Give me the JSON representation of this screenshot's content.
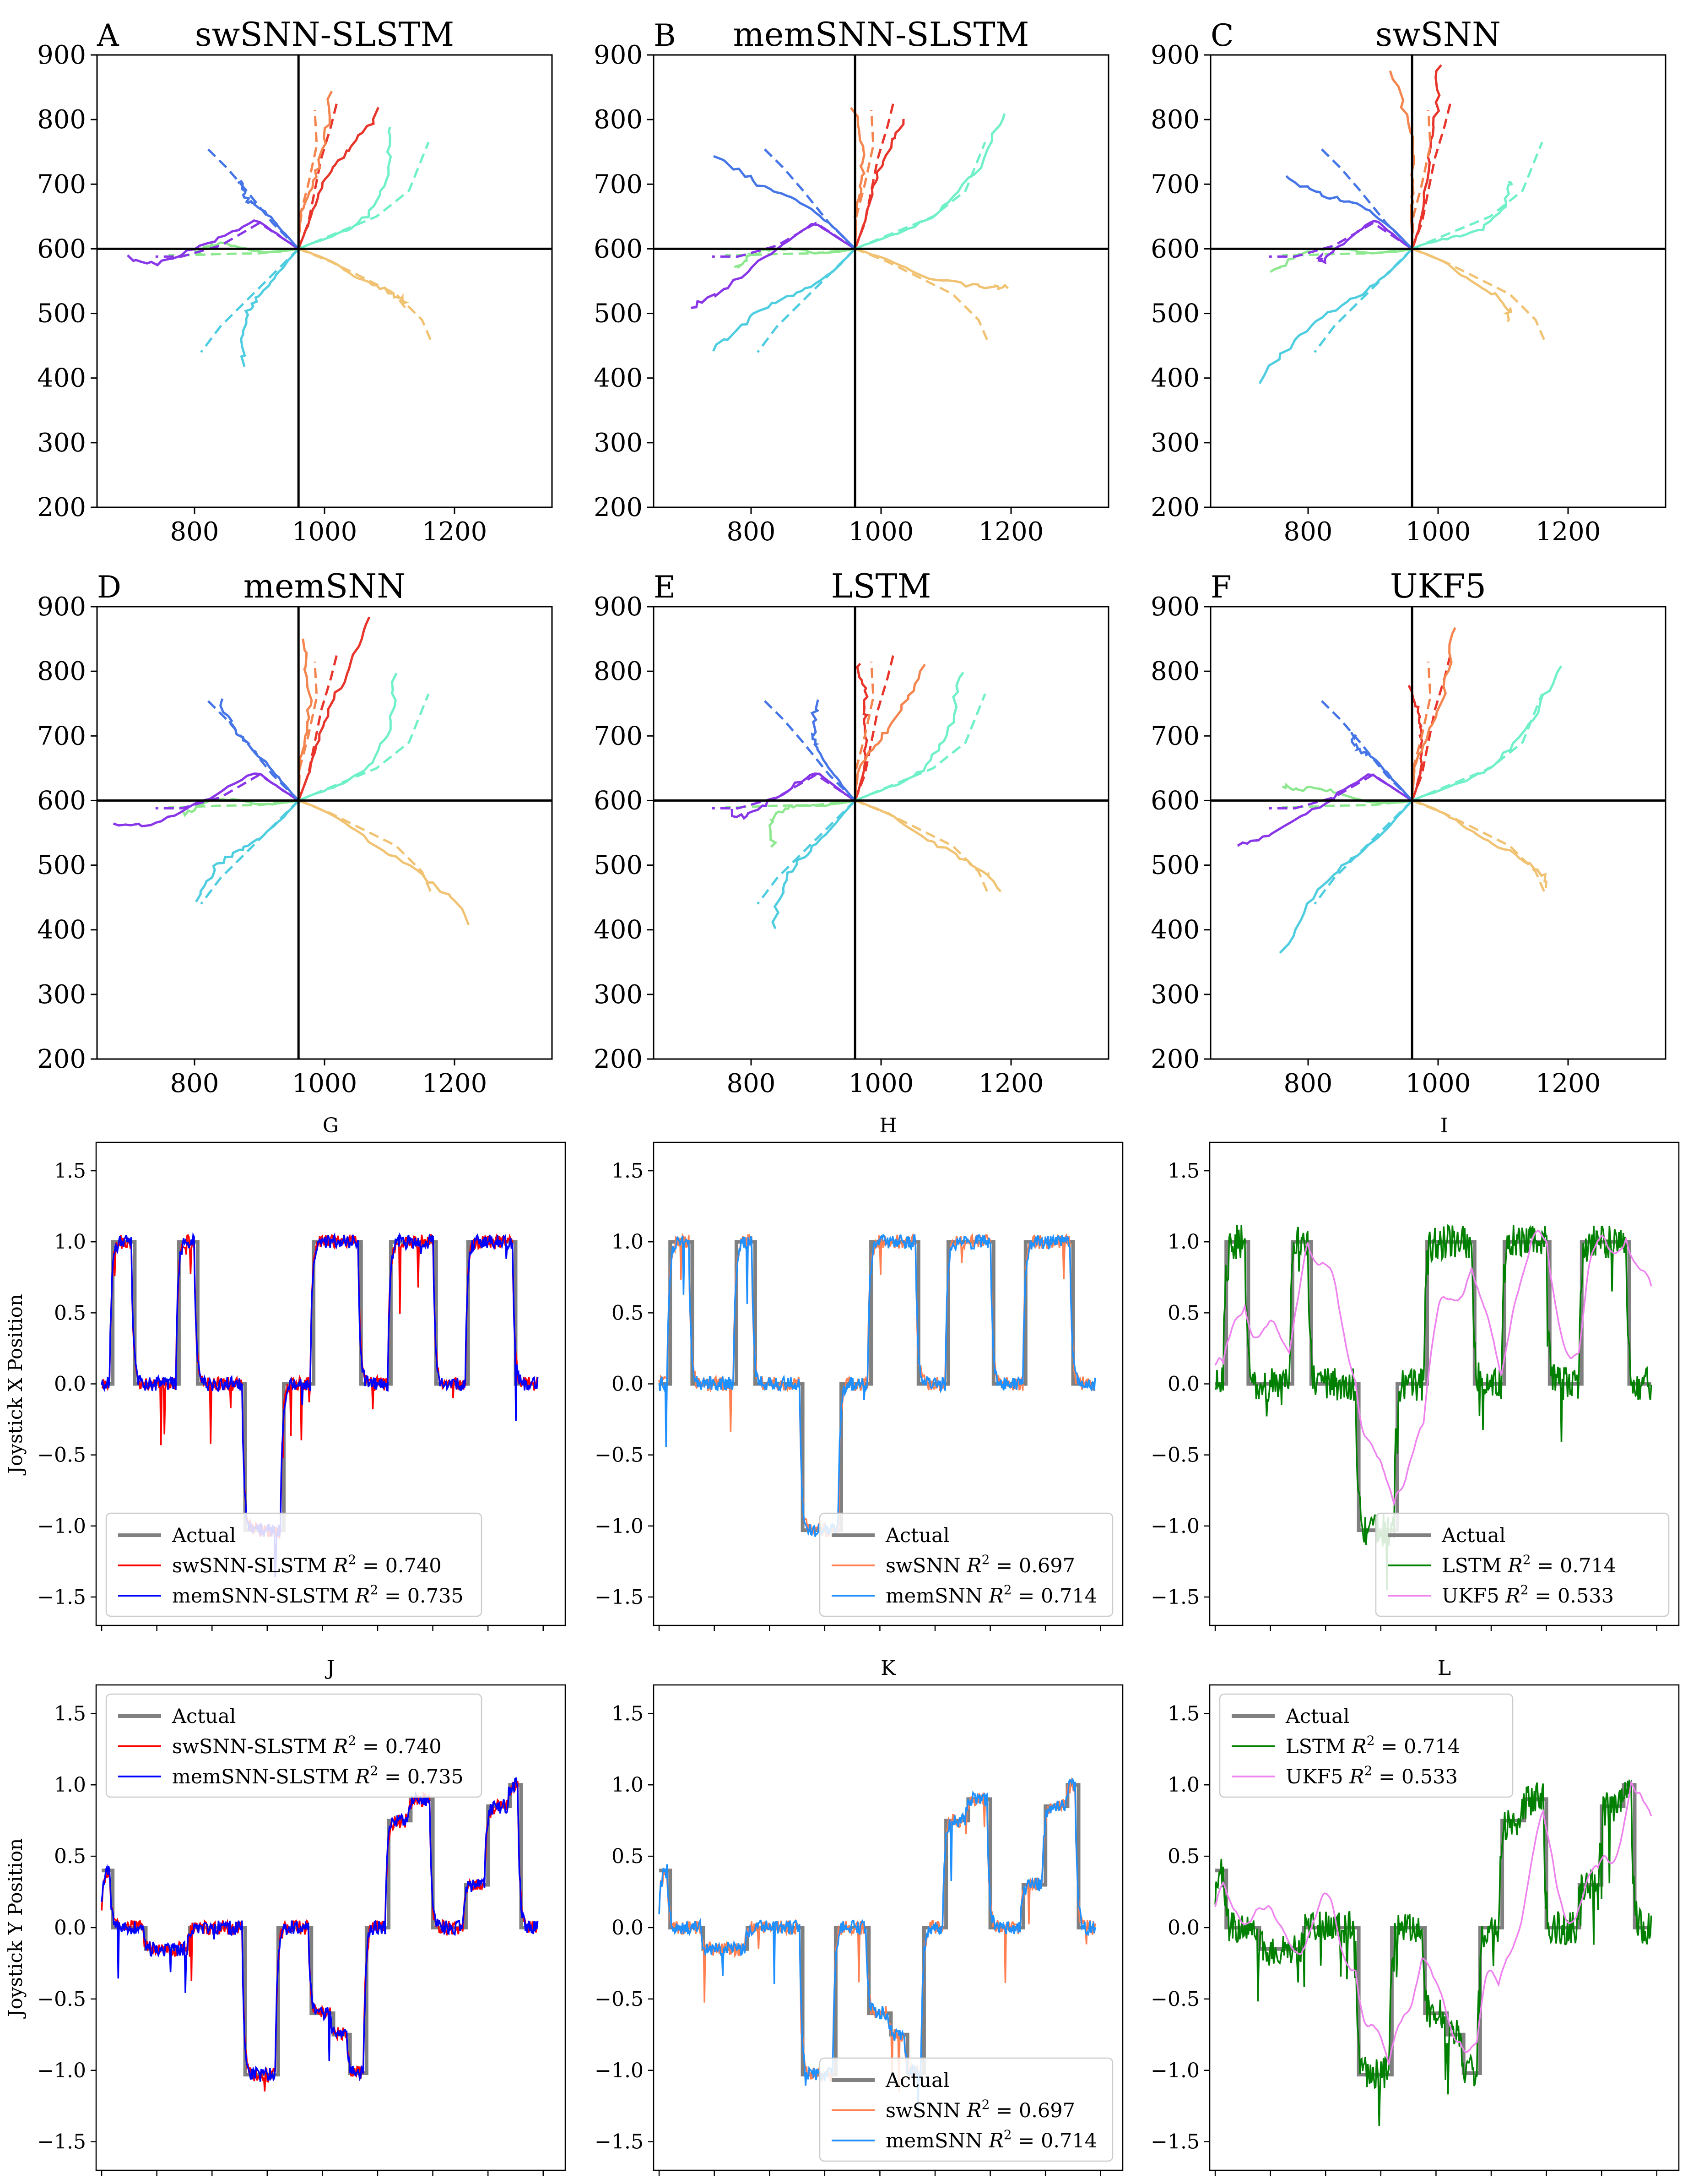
{
  "figure": {
    "traj_panels": [
      {
        "letter": "A",
        "title": "swSNN-SLSTM",
        "variant": 0
      },
      {
        "letter": "B",
        "title": "memSNN-SLSTM",
        "variant": 1
      },
      {
        "letter": "C",
        "title": "swSNN",
        "variant": 2
      },
      {
        "letter": "D",
        "title": "memSNN",
        "variant": 3
      },
      {
        "letter": "E",
        "title": "LSTM",
        "variant": 4
      },
      {
        "letter": "F",
        "title": "UKF5",
        "variant": 5
      }
    ],
    "traj_axes": {
      "xlim": [
        650,
        1350
      ],
      "ylim": [
        200,
        900
      ],
      "xticks": [
        800,
        1000,
        1200
      ],
      "yticks": [
        200,
        300,
        400,
        500,
        600,
        700,
        800,
        900
      ],
      "center": [
        960,
        600
      ]
    },
    "ts_panels": [
      {
        "letter": "G",
        "row": "x",
        "legend_pos": "bottom-left",
        "legend": [
          {
            "label": "Actual",
            "r2": "",
            "color": "#808080"
          },
          {
            "label": "swSNN-SLSTM",
            "r2": "0.740",
            "color": "#ff0000"
          },
          {
            "label": "memSNN-SLSTM",
            "r2": "0.735",
            "color": "#0000ff"
          }
        ]
      },
      {
        "letter": "H",
        "row": "x",
        "legend_pos": "bottom-right",
        "legend": [
          {
            "label": "Actual",
            "r2": "",
            "color": "#808080"
          },
          {
            "label": "swSNN",
            "r2": "0.697",
            "color": "#ff7f50"
          },
          {
            "label": "memSNN",
            "r2": "0.714",
            "color": "#1e90ff"
          }
        ]
      },
      {
        "letter": "I",
        "row": "x",
        "legend_pos": "bottom-right",
        "legend": [
          {
            "label": "Actual",
            "r2": "",
            "color": "#808080"
          },
          {
            "label": "LSTM",
            "r2": "0.714",
            "color": "#008000"
          },
          {
            "label": "UKF5",
            "r2": "0.533",
            "color": "#ee82ee"
          }
        ]
      },
      {
        "letter": "J",
        "row": "y",
        "legend_pos": "top-left",
        "legend": [
          {
            "label": "Actual",
            "r2": "",
            "color": "#808080"
          },
          {
            "label": "swSNN-SLSTM",
            "r2": "0.740",
            "color": "#ff0000"
          },
          {
            "label": "memSNN-SLSTM",
            "r2": "0.735",
            "color": "#0000ff"
          }
        ]
      },
      {
        "letter": "K",
        "row": "y",
        "legend_pos": "bottom-right",
        "legend": [
          {
            "label": "Actual",
            "r2": "",
            "color": "#808080"
          },
          {
            "label": "swSNN",
            "r2": "0.697",
            "color": "#ff7f50"
          },
          {
            "label": "memSNN",
            "r2": "0.714",
            "color": "#1e90ff"
          }
        ]
      },
      {
        "letter": "L",
        "row": "y",
        "legend_pos": "top-left",
        "legend": [
          {
            "label": "Actual",
            "r2": "",
            "color": "#808080"
          },
          {
            "label": "LSTM",
            "r2": "0.714",
            "color": "#008000"
          },
          {
            "label": "UKF5",
            "r2": "0.533",
            "color": "#ee82ee"
          }
        ]
      }
    ],
    "ts_axes": {
      "ylim": [
        -1.7,
        1.7
      ],
      "yticks": [
        1.5,
        1.0,
        0.5,
        0.0,
        -0.5,
        -1.0,
        -1.5
      ],
      "ytick_labels": [
        "1.5",
        "1.0",
        "0.5",
        "0.0",
        "−0.5",
        "−1.0",
        "−1.5"
      ],
      "xlim": [
        -0.5,
        42
      ]
    },
    "ylabel_x": "Joystick X Position",
    "ylabel_y": "Joystick Y Position",
    "r2_symbol": "R",
    "r2_exponent": "2"
  },
  "chart_data": {
    "type": "line",
    "subplots": [
      {
        "kind": "trajectory",
        "panels": [
          "A",
          "B",
          "C",
          "D",
          "E",
          "F"
        ],
        "xlim": [
          650,
          1350
        ],
        "ylim": [
          200,
          900
        ],
        "center": [
          960,
          600
        ],
        "target_colors": [
          "#e8342a",
          "#f5854f",
          "#f0c272",
          "#6ff0c8",
          "#4fcde0",
          "#8ee88f",
          "#8836e8",
          "#4575e6"
        ],
        "targets": [
          {
            "color": "#e8342a",
            "actual": [
              [
                960,
                600
              ],
              [
                975,
                640
              ],
              [
                985,
                690
              ],
              [
                995,
                740
              ],
              [
                1010,
                790
              ],
              [
                1020,
                830
              ]
            ]
          },
          {
            "color": "#f5854f",
            "actual": [
              [
                960,
                600
              ],
              [
                962,
                650
              ],
              [
                975,
                700
              ],
              [
                988,
                760
              ],
              [
                985,
                815
              ]
            ]
          },
          {
            "color": "#f0c272",
            "actual": [
              [
                960,
                600
              ],
              [
                1010,
                580
              ],
              [
                1060,
                555
              ],
              [
                1110,
                530
              ],
              [
                1150,
                490
              ],
              [
                1165,
                455
              ]
            ]
          },
          {
            "color": "#6ff0c8",
            "actual": [
              [
                960,
                600
              ],
              [
                1020,
                625
              ],
              [
                1080,
                650
              ],
              [
                1130,
                690
              ],
              [
                1160,
                765
              ]
            ]
          },
          {
            "color": "#4fcde0",
            "actual": [
              [
                960,
                600
              ],
              [
                920,
                560
              ],
              [
                880,
                520
              ],
              [
                840,
                480
              ],
              [
                810,
                440
              ]
            ]
          },
          {
            "color": "#8ee88f",
            "actual": [
              [
                960,
                600
              ],
              [
                900,
                593
              ],
              [
                840,
                592
              ],
              [
                790,
                590
              ],
              [
                760,
                590
              ]
            ]
          },
          {
            "color": "#8836e8",
            "actual": [
              [
                960,
                600
              ],
              [
                900,
                640
              ],
              [
                840,
                605
              ],
              [
                780,
                588
              ],
              [
                740,
                588
              ]
            ]
          },
          {
            "color": "#4575e6",
            "actual": [
              [
                960,
                600
              ],
              [
                920,
                640
              ],
              [
                880,
                690
              ],
              [
                850,
                725
              ],
              [
                820,
                755
              ]
            ]
          }
        ]
      },
      {
        "kind": "timeseries",
        "panels": [
          "G",
          "H",
          "I"
        ],
        "ylabel": "Joystick X Position",
        "ylim": [
          -1.7,
          1.7
        ],
        "actual_steps": [
          [
            0,
            1,
            0.0
          ],
          [
            1,
            3,
            1.0
          ],
          [
            3,
            7,
            0.0
          ],
          [
            7,
            8.7,
            1.0
          ],
          [
            8.7,
            13,
            0.0
          ],
          [
            13,
            16.5,
            -1.03
          ],
          [
            16.5,
            19.2,
            0.0
          ],
          [
            19.2,
            23.5,
            1.0
          ],
          [
            23.5,
            26.2,
            0.0
          ],
          [
            26.2,
            30.3,
            1.0
          ],
          [
            30.3,
            33.2,
            0.0
          ],
          [
            33.2,
            37.5,
            1.0
          ],
          [
            37.5,
            38.5,
            0.0
          ],
          [
            38.5,
            39.5,
            0.0
          ]
        ],
        "series": [
          {
            "name": "swSNN-SLSTM",
            "r2": 0.74
          },
          {
            "name": "memSNN-SLSTM",
            "r2": 0.735
          },
          {
            "name": "swSNN",
            "r2": 0.697
          },
          {
            "name": "memSNN",
            "r2": 0.714
          },
          {
            "name": "LSTM",
            "r2": 0.714
          },
          {
            "name": "UKF5",
            "r2": 0.533
          }
        ]
      },
      {
        "kind": "timeseries",
        "panels": [
          "J",
          "K",
          "L"
        ],
        "ylabel": "Joystick Y Position",
        "ylim": [
          -1.7,
          1.7
        ],
        "actual_steps": [
          [
            0,
            1,
            0.4
          ],
          [
            1,
            4,
            0.0
          ],
          [
            4,
            8,
            -0.15
          ],
          [
            8,
            13,
            0.0
          ],
          [
            13,
            16,
            -1.03
          ],
          [
            16,
            19,
            0.0
          ],
          [
            19,
            21,
            -0.6
          ],
          [
            21,
            22.5,
            -0.75
          ],
          [
            22.5,
            24,
            -1.02
          ],
          [
            24,
            26,
            0.0
          ],
          [
            26,
            28,
            0.75
          ],
          [
            28,
            30,
            0.9
          ],
          [
            30,
            33,
            0.0
          ],
          [
            33,
            35,
            0.3
          ],
          [
            35,
            37,
            0.85
          ],
          [
            37,
            38,
            1.0
          ],
          [
            38,
            39.5,
            0.0
          ]
        ],
        "series": [
          {
            "name": "swSNN-SLSTM",
            "r2": 0.74
          },
          {
            "name": "memSNN-SLSTM",
            "r2": 0.735
          },
          {
            "name": "swSNN",
            "r2": 0.697
          },
          {
            "name": "memSNN",
            "r2": 0.714
          },
          {
            "name": "LSTM",
            "r2": 0.714
          },
          {
            "name": "UKF5",
            "r2": 0.533
          }
        ]
      }
    ]
  }
}
